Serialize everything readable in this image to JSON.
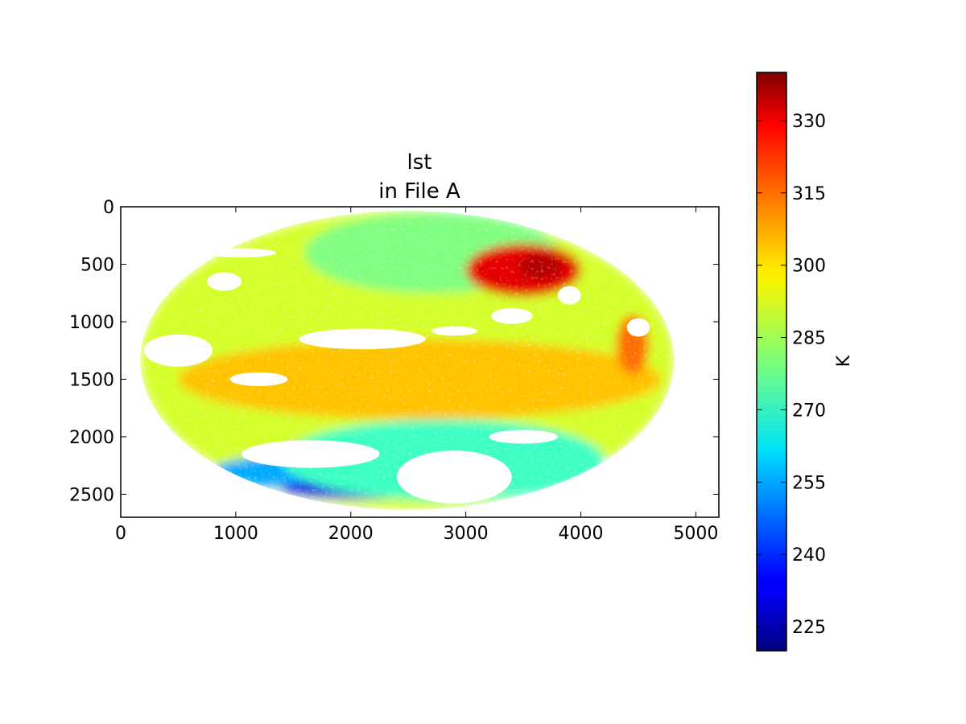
{
  "chart_data": {
    "type": "heatmap",
    "title": "lst",
    "subtitle": "in File A",
    "xlim": [
      0,
      5200
    ],
    "ylim": [
      2700,
      0
    ],
    "x_ticks": [
      0,
      1000,
      2000,
      3000,
      4000,
      5000
    ],
    "y_ticks": [
      0,
      500,
      1000,
      1500,
      2000,
      2500
    ],
    "colorbar": {
      "label": "K",
      "min": 220,
      "max": 340,
      "ticks": [
        225,
        240,
        255,
        270,
        285,
        300,
        315,
        330
      ],
      "colormap": "jet"
    },
    "disk": {
      "center_x": 2490,
      "center_y": 1335,
      "radius_x": 2320,
      "radius_y": 1300
    },
    "features": [
      {
        "name": "background",
        "value": 290,
        "cx": 2490,
        "cy": 1335,
        "rx": 2320,
        "ry": 1300
      },
      {
        "name": "equatorial-warm-band",
        "value": 302,
        "cx": 2600,
        "cy": 1500,
        "rx": 2100,
        "ry": 350
      },
      {
        "name": "north-central-cool",
        "value": 280,
        "cx": 2700,
        "cy": 400,
        "rx": 1100,
        "ry": 350
      },
      {
        "name": "north-american-hot",
        "value": 328,
        "cx": 3500,
        "cy": 550,
        "rx": 500,
        "ry": 230
      },
      {
        "name": "desert-hotspot",
        "value": 334,
        "cx": 3650,
        "cy": 520,
        "rx": 200,
        "ry": 110
      },
      {
        "name": "southern-cold-band",
        "value": 255,
        "cx": 1800,
        "cy": 2300,
        "rx": 1000,
        "ry": 160
      },
      {
        "name": "southern-very-cold",
        "value": 232,
        "cx": 2100,
        "cy": 2450,
        "rx": 700,
        "ry": 90
      },
      {
        "name": "south-cool",
        "value": 272,
        "cx": 2800,
        "cy": 2200,
        "rx": 1400,
        "ry": 350
      },
      {
        "name": "east-warm-coast",
        "value": 312,
        "cx": 4450,
        "cy": 1200,
        "rx": 140,
        "ry": 260
      }
    ],
    "missing_regions": [
      {
        "cx": 2100,
        "cy": 1150,
        "rx": 550,
        "ry": 90
      },
      {
        "cx": 2900,
        "cy": 1080,
        "rx": 200,
        "ry": 40
      },
      {
        "cx": 1650,
        "cy": 2150,
        "rx": 600,
        "ry": 120
      },
      {
        "cx": 2900,
        "cy": 2350,
        "rx": 500,
        "ry": 230
      },
      {
        "cx": 900,
        "cy": 650,
        "rx": 150,
        "ry": 80
      },
      {
        "cx": 1200,
        "cy": 1500,
        "rx": 250,
        "ry": 60
      },
      {
        "cx": 3400,
        "cy": 950,
        "rx": 180,
        "ry": 70
      },
      {
        "cx": 3900,
        "cy": 770,
        "rx": 100,
        "ry": 80
      },
      {
        "cx": 4500,
        "cy": 1050,
        "rx": 100,
        "ry": 80
      },
      {
        "cx": 3500,
        "cy": 2000,
        "rx": 300,
        "ry": 60
      },
      {
        "cx": 1050,
        "cy": 400,
        "rx": 300,
        "ry": 40
      },
      {
        "cx": 500,
        "cy": 1250,
        "rx": 300,
        "ry": 140
      }
    ]
  }
}
